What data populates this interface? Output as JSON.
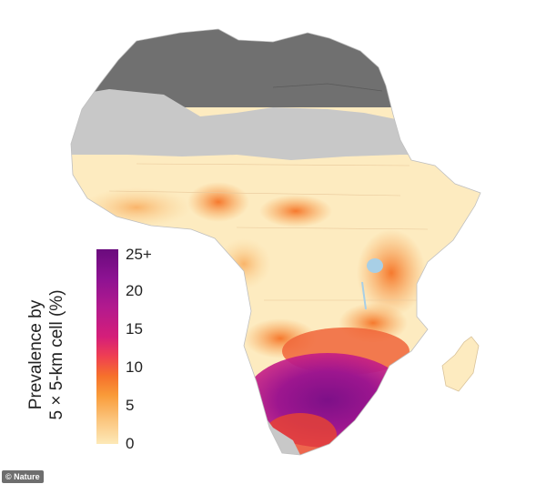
{
  "legend": {
    "title_line1": "Prevalence by",
    "title_line2": "5 × 5-km cell (%)",
    "ticks": [
      "25+",
      "20",
      "15",
      "10",
      "5",
      "0"
    ],
    "range": [
      0,
      25
    ]
  },
  "credit": "© Nature",
  "colors": {
    "no_data_dark": "#707070",
    "no_data_light": "#c8c8c8",
    "low": "#fdebc0",
    "mid": "#f6792e",
    "high": "#7a0f86",
    "water": "#a8cfe6"
  }
}
